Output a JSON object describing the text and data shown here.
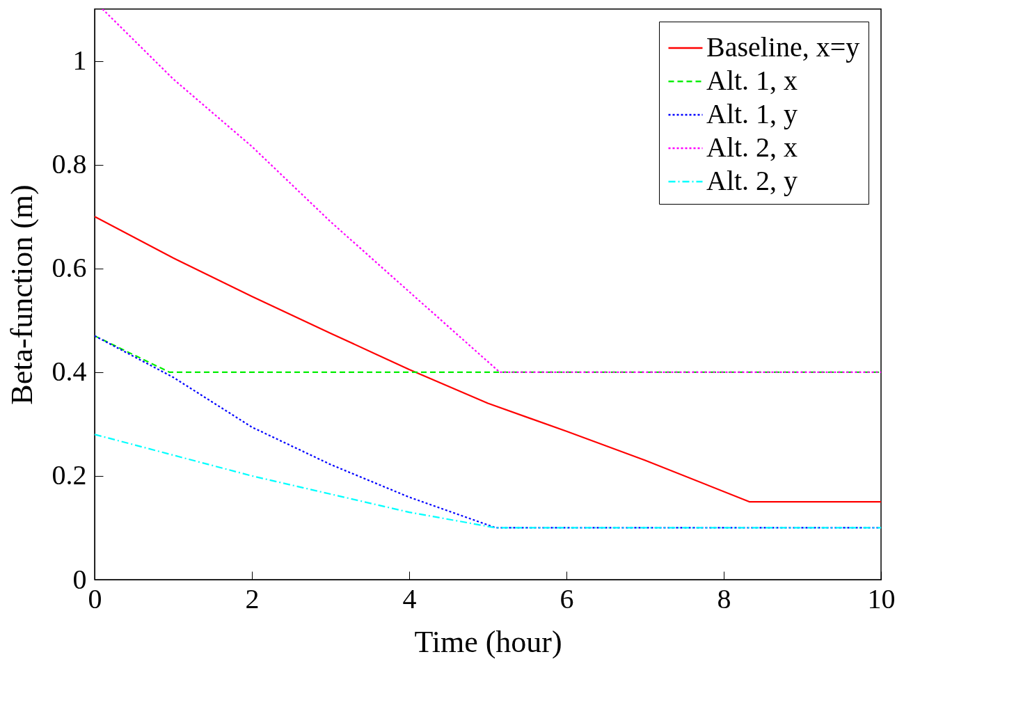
{
  "chart_data": {
    "type": "line",
    "xlabel": "Time (hour)",
    "ylabel": "Beta-function (m)",
    "xlim": [
      0,
      10
    ],
    "ylim": [
      0,
      1.1
    ],
    "xticks": [
      0,
      2,
      4,
      6,
      8,
      10
    ],
    "yticks": [
      0,
      0.2,
      0.4,
      0.6,
      0.8,
      1
    ],
    "grid": false,
    "legend": "top right",
    "marker": "none",
    "series": [
      {
        "name": "Baseline, x=y",
        "color": "#ff0000",
        "line_style": "solid",
        "x": [
          0,
          1,
          2,
          3,
          4,
          5,
          6,
          7,
          8.33,
          10
        ],
        "values": [
          0.7,
          0.62,
          0.546,
          0.475,
          0.405,
          0.34,
          0.286,
          0.23,
          0.15,
          0.15
        ]
      },
      {
        "name": "Alt. 1, x",
        "color": "#00ee00",
        "line_style": "dashed",
        "x": [
          0,
          0.95,
          10
        ],
        "values": [
          0.47,
          0.4,
          0.4
        ]
      },
      {
        "name": "Alt. 1, y",
        "color": "#0000ff",
        "line_style": "dotted",
        "x": [
          0,
          1,
          2,
          3,
          4,
          5.1,
          10
        ],
        "values": [
          0.47,
          0.39,
          0.294,
          0.222,
          0.159,
          0.1,
          0.1
        ]
      },
      {
        "name": "Alt. 2, x",
        "color": "#ff00ff",
        "line_style": "dotted",
        "x": [
          0.1,
          1,
          2,
          3,
          4,
          5.15,
          10
        ],
        "values": [
          1.1,
          0.965,
          0.835,
          0.69,
          0.555,
          0.4,
          0.4
        ]
      },
      {
        "name": "Alt. 2, y",
        "color": "#00ffff",
        "line_style": "dashdot",
        "x": [
          0,
          1,
          2,
          3,
          4,
          5.1,
          10
        ],
        "values": [
          0.28,
          0.24,
          0.2,
          0.165,
          0.13,
          0.1,
          0.1
        ]
      }
    ]
  }
}
